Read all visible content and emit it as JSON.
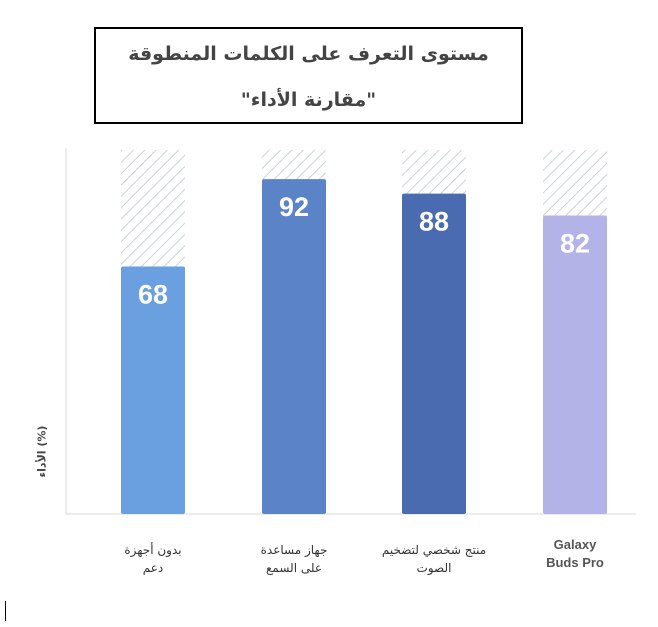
{
  "title": {
    "line1": "مستوى التعرف على  الكلمات المنطوقة",
    "line2": "\"مقارنة الأداء\""
  },
  "chart_data": {
    "type": "bar",
    "categories": [
      "بدون أجهزة دعم",
      "جهاز مساعدة على السمع",
      "منتج شخصي لتضخيم الصوت",
      "Galaxy Buds Pro"
    ],
    "category_lines": [
      [
        "بدون أجهزة",
        "دعم"
      ],
      [
        "جهاز مساعدة",
        "على السمع"
      ],
      [
        "منتج شخصي لتضخيم",
        "الصوت"
      ],
      [
        "Galaxy",
        "Buds Pro"
      ]
    ],
    "values": [
      68,
      92,
      88,
      82
    ],
    "colors": [
      "#6a9fe0",
      "#5b84c8",
      "#4a6bb0",
      "#b3b3e8"
    ],
    "ylabel": "الأداء (%)",
    "ylim": [
      0,
      100
    ],
    "grid": false,
    "data_labels": true
  }
}
